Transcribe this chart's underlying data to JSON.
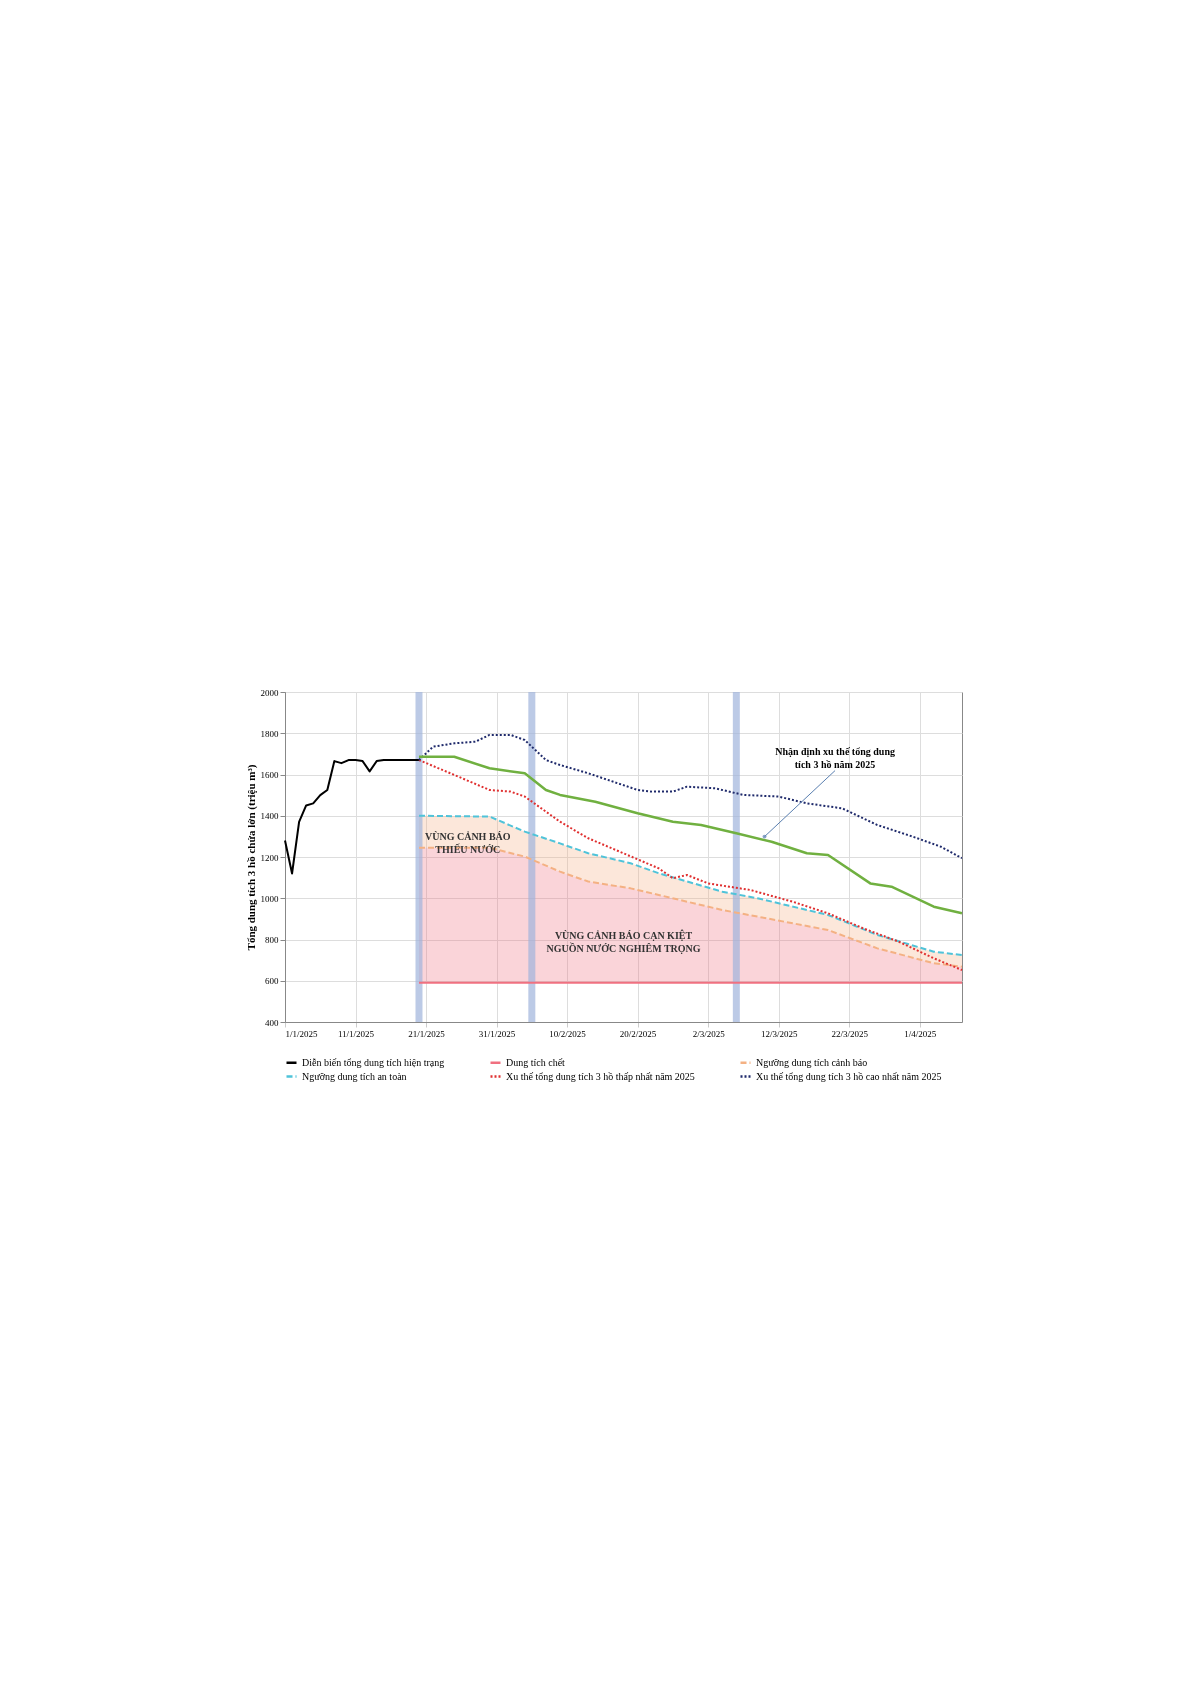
{
  "chart_data": {
    "type": "line",
    "ylabel": "Tổng dung tích 3 hồ chứa lớn (triệu m³)",
    "xlim": [
      "2025-01-01",
      "2025-04-07"
    ],
    "xticks": [
      {
        "value": "2025-01-01",
        "label": "1/1/2025"
      },
      {
        "value": "2025-01-11",
        "label": "11/1/2025"
      },
      {
        "value": "2025-01-21",
        "label": "21/1/2025"
      },
      {
        "value": "2025-01-31",
        "label": "31/1/2025"
      },
      {
        "value": "2025-02-10",
        "label": "10/2/2025"
      },
      {
        "value": "2025-02-20",
        "label": "20/2/2025"
      },
      {
        "value": "2025-03-02",
        "label": "2/3/2025"
      },
      {
        "value": "2025-03-12",
        "label": "12/3/2025"
      },
      {
        "value": "2025-03-22",
        "label": "22/3/2025"
      },
      {
        "value": "2025-04-01",
        "label": "1/4/2025"
      }
    ],
    "ylim": [
      400,
      2000
    ],
    "yticks": [
      400,
      600,
      800,
      1000,
      1200,
      1400,
      1600,
      1800,
      2000
    ],
    "grid": true,
    "legend": "bottom",
    "series": [
      {
        "name": "Diễn biến tổng dung tích hiện trạng",
        "color": "#000000",
        "line_style": "solid",
        "x": [
          "2025-01-01",
          "2025-01-02",
          "2025-01-03",
          "2025-01-04",
          "2025-01-05",
          "2025-01-06",
          "2025-01-07",
          "2025-01-08",
          "2025-01-09",
          "2025-01-10",
          "2025-01-11",
          "2025-01-12",
          "2025-01-13",
          "2025-01-14",
          "2025-01-15",
          "2025-01-16",
          "2025-01-17",
          "2025-01-18",
          "2025-01-20"
        ],
        "values": [
          1280,
          1120,
          1370,
          1450,
          1460,
          1500,
          1525,
          1665,
          1655,
          1670,
          1670,
          1665,
          1615,
          1665,
          1670,
          1670,
          1670,
          1670,
          1670
        ]
      },
      {
        "name": "Dung tích chết",
        "color": "#f07080",
        "line_style": "solid",
        "x": [
          "2025-01-20",
          "2025-01-30",
          "2025-02-04",
          "2025-02-09",
          "2025-02-13",
          "2025-02-19",
          "2025-02-23",
          "2025-03-04",
          "2025-03-09",
          "2025-03-19",
          "2025-03-26",
          "2025-04-03",
          "2025-04-07"
        ],
        "values": [
          590,
          590,
          590,
          590,
          590,
          590,
          590,
          590,
          590,
          590,
          590,
          590,
          590
        ],
        "lower": [
          590,
          590,
          590,
          590,
          590,
          590,
          590,
          590,
          590,
          590,
          590,
          590,
          590
        ],
        "upper": [
          1245,
          1245,
          1202,
          1129,
          1081,
          1048,
          1016,
          943,
          911,
          846,
          757,
          685,
          668
        ]
      },
      {
        "name": "Ngưỡng dung tích cảnh báo",
        "color": "#f4b183",
        "line_style": "dashed",
        "x": [
          "2025-01-20",
          "2025-01-30",
          "2025-02-04",
          "2025-02-09",
          "2025-02-13",
          "2025-02-19",
          "2025-02-23",
          "2025-03-04",
          "2025-03-09",
          "2025-03-19",
          "2025-03-26",
          "2025-04-03",
          "2025-04-07"
        ],
        "values": [
          1245,
          1245,
          1202,
          1129,
          1081,
          1048,
          1016,
          943,
          911,
          846,
          757,
          685,
          668
        ],
        "lower": [
          1245,
          1245,
          1202,
          1129,
          1081,
          1048,
          1016,
          943,
          911,
          846,
          757,
          685,
          668
        ],
        "upper": [
          1400,
          1396,
          1323,
          1266,
          1218,
          1170,
          1121,
          1032,
          1000,
          919,
          822,
          741,
          725
        ]
      },
      {
        "name": "Ngưỡng dung tích an toàn",
        "color": "#4fc3d9",
        "line_style": "dashed",
        "x": [
          "2025-01-20",
          "2025-01-30",
          "2025-02-04",
          "2025-02-09",
          "2025-02-13",
          "2025-02-19",
          "2025-02-23",
          "2025-03-04",
          "2025-03-09",
          "2025-03-19",
          "2025-03-26",
          "2025-04-03",
          "2025-04-07"
        ],
        "values": [
          1400,
          1396,
          1323,
          1266,
          1218,
          1170,
          1121,
          1032,
          1000,
          919,
          822,
          741,
          725
        ]
      },
      {
        "name": "Xu thế tổng dung tích 3 hồ thấp nhất năm 2025",
        "color": "#e03030",
        "line_style": "dotted",
        "x": [
          "2025-01-20",
          "2025-01-25",
          "2025-01-30",
          "2025-02-02",
          "2025-02-04",
          "2025-02-07",
          "2025-02-09",
          "2025-02-13",
          "2025-02-18",
          "2025-02-23",
          "2025-02-25",
          "2025-02-27",
          "2025-03-02",
          "2025-03-05",
          "2025-03-08",
          "2025-03-14",
          "2025-03-19",
          "2025-03-24",
          "2025-03-29",
          "2025-04-03",
          "2025-04-07"
        ],
        "values": [
          1670,
          1598,
          1525,
          1517,
          1493,
          1420,
          1371,
          1291,
          1218,
          1145,
          1097,
          1113,
          1072,
          1056,
          1040,
          983,
          927,
          854,
          790,
          709,
          652
        ]
      },
      {
        "name": "Xu thế tổng dung tích 3 hồ cao nhất năm 2025",
        "color": "#1f2a6b",
        "line_style": "dotted",
        "x": [
          "2025-01-20",
          "2025-01-22",
          "2025-01-25",
          "2025-01-28",
          "2025-01-30",
          "2025-02-02",
          "2025-02-04",
          "2025-02-07",
          "2025-02-09",
          "2025-02-13",
          "2025-02-20",
          "2025-02-22",
          "2025-02-25",
          "2025-02-27",
          "2025-03-03",
          "2025-03-07",
          "2025-03-12",
          "2025-03-16",
          "2025-03-21",
          "2025-03-26",
          "2025-03-31",
          "2025-04-04",
          "2025-04-07"
        ],
        "values": [
          1670,
          1735,
          1751,
          1759,
          1792,
          1792,
          1767,
          1670,
          1646,
          1606,
          1525,
          1517,
          1517,
          1541,
          1533,
          1501,
          1493,
          1460,
          1436,
          1355,
          1299,
          1250,
          1194
        ]
      },
      {
        "color": "#70b040",
        "line_style": "solid",
        "x": [
          "2025-01-20",
          "2025-01-25",
          "2025-01-30",
          "2025-02-04",
          "2025-02-07",
          "2025-02-09",
          "2025-02-14",
          "2025-02-20",
          "2025-02-25",
          "2025-03-01",
          "2025-03-06",
          "2025-03-11",
          "2025-03-16",
          "2025-03-19",
          "2025-03-25",
          "2025-03-28",
          "2025-04-03",
          "2025-04-07"
        ],
        "values": [
          1686,
          1686,
          1630,
          1606,
          1525,
          1501,
          1468,
          1412,
          1371,
          1355,
          1315,
          1274,
          1218,
          1210,
          1072,
          1056,
          959,
          927
        ]
      }
    ],
    "ref_lines": [
      {
        "axis": "x",
        "value": "2025-01-20",
        "color": "#9fb4dc"
      },
      {
        "axis": "x",
        "value": "2025-02-05",
        "color": "#9fb4dc"
      },
      {
        "axis": "x",
        "value": "2025-03-06",
        "color": "#9fb4dc"
      }
    ],
    "annotations": [
      "VÙNG CẢNH BÁO THIẾU NƯỚC",
      "VÙNG CẢNH BÁO CẠN KIỆT NGUỒN NƯỚC NGHIÊM TRỌNG",
      {
        "text": "Nhận định xu thế tổng dung tích 3 hồ năm 2025",
        "x": "2025-03-10",
        "y": 1299
      }
    ]
  }
}
